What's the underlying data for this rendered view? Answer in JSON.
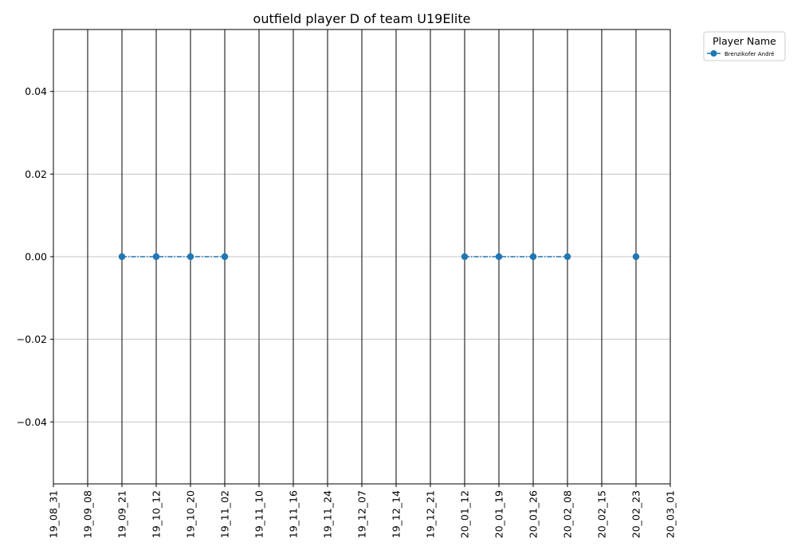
{
  "chart_data": {
    "type": "line",
    "title": "outfield player D of team U19Elite",
    "xlabel": "",
    "ylabel": "",
    "categories": [
      "19_08_31",
      "19_09_08",
      "19_09_21",
      "19_10_12",
      "19_10_20",
      "19_11_02",
      "19_11_10",
      "19_11_16",
      "19_11_24",
      "19_12_07",
      "19_12_14",
      "19_12_21",
      "20_01_12",
      "20_01_19",
      "20_01_26",
      "20_02_08",
      "20_02_15",
      "20_02_23",
      "20_03_01"
    ],
    "ylim": [
      -0.055,
      0.055
    ],
    "yticks": [
      -0.04,
      -0.02,
      0.0,
      0.02,
      0.04
    ],
    "ytick_labels": [
      "−0.04",
      "−0.02",
      "0.00",
      "0.02",
      "0.04"
    ],
    "grid": true,
    "legend": {
      "title": "Player Name",
      "placement": "outside-top-right"
    },
    "series": [
      {
        "name": "Brenzikofer André",
        "color": "#1f77b4",
        "linestyle": "dashdot",
        "marker": "circle",
        "values": [
          null,
          null,
          0,
          0,
          0,
          0,
          null,
          null,
          null,
          null,
          null,
          null,
          0,
          0,
          0,
          0,
          null,
          0,
          null
        ]
      }
    ]
  }
}
